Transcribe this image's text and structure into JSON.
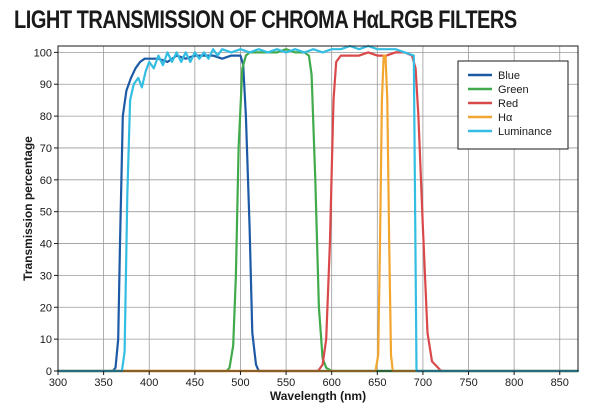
{
  "chart_data": {
    "type": "line",
    "title": "LIGHT TRANSMISSION OF CHROMA HαLRGB FILTERS",
    "xlabel": "Wavelength (nm)",
    "ylabel": "Transmission percentage",
    "xlim": [
      300,
      870
    ],
    "ylim": [
      0,
      102
    ],
    "xticks": [
      300,
      350,
      400,
      450,
      500,
      550,
      600,
      650,
      700,
      750,
      800,
      850
    ],
    "yticks": [
      0,
      10,
      20,
      30,
      40,
      50,
      60,
      70,
      80,
      90,
      100
    ],
    "grid": true,
    "legend_position": "top-right",
    "series": [
      {
        "name": "Blue",
        "color": "#1d5aa6",
        "x": [
          300,
          360,
          363,
          366,
          368,
          371,
          375,
          380,
          385,
          390,
          395,
          400,
          410,
          420,
          430,
          440,
          450,
          460,
          470,
          480,
          490,
          495,
          500,
          503,
          506,
          510,
          513,
          517,
          520,
          525,
          540,
          870
        ],
        "y": [
          0,
          0,
          1,
          10,
          40,
          80,
          88,
          92,
          95,
          97,
          98,
          98,
          98,
          97,
          99,
          98,
          99,
          99,
          99,
          98,
          99,
          99,
          99,
          96,
          80,
          45,
          12,
          2,
          0,
          0,
          0,
          0
        ]
      },
      {
        "name": "Green",
        "color": "#41aa4a",
        "x": [
          300,
          485,
          488,
          492,
          495,
          498,
          502,
          506,
          510,
          520,
          530,
          540,
          550,
          560,
          570,
          575,
          578,
          582,
          586,
          590,
          594,
          600,
          870
        ],
        "y": [
          0,
          0,
          1,
          8,
          30,
          70,
          95,
          99,
          100,
          100,
          100,
          100,
          101,
          100,
          100,
          99,
          93,
          60,
          20,
          4,
          1,
          0,
          0
        ]
      },
      {
        "name": "Red",
        "color": "#d9484a",
        "x": [
          300,
          585,
          590,
          594,
          598,
          602,
          605,
          610,
          620,
          630,
          640,
          650,
          660,
          670,
          680,
          688,
          692,
          695,
          700,
          705,
          710,
          720,
          870
        ],
        "y": [
          0,
          0,
          2,
          10,
          40,
          85,
          97,
          99,
          99,
          99,
          100,
          99,
          99,
          100,
          100,
          99,
          95,
          80,
          45,
          12,
          3,
          0,
          0
        ]
      },
      {
        "name": "Hα",
        "color": "#f2a630",
        "x": [
          300,
          648,
          651,
          653,
          655,
          657,
          659,
          661,
          663,
          665,
          667,
          870
        ],
        "y": [
          0,
          0,
          5,
          40,
          85,
          99,
          99,
          85,
          40,
          5,
          0,
          0
        ]
      },
      {
        "name": "Luminance",
        "color": "#34bde2",
        "x": [
          300,
          370,
          373,
          376,
          379,
          383,
          388,
          392,
          396,
          400,
          405,
          410,
          415,
          420,
          425,
          430,
          435,
          440,
          445,
          450,
          455,
          460,
          465,
          470,
          475,
          480,
          490,
          500,
          510,
          520,
          530,
          540,
          550,
          560,
          570,
          580,
          590,
          600,
          610,
          620,
          630,
          640,
          650,
          660,
          670,
          680,
          690,
          693,
          870
        ],
        "y": [
          0,
          0,
          6,
          55,
          85,
          90,
          92,
          89,
          94,
          97,
          95,
          99,
          96,
          100,
          97,
          100,
          97,
          100,
          97,
          100,
          98,
          100,
          98,
          101,
          99,
          101,
          100,
          101,
          100,
          101,
          100,
          101,
          100,
          101,
          100,
          101,
          100,
          101,
          101,
          102,
          101,
          102,
          101,
          101,
          101,
          100,
          99,
          0,
          0
        ]
      }
    ]
  }
}
